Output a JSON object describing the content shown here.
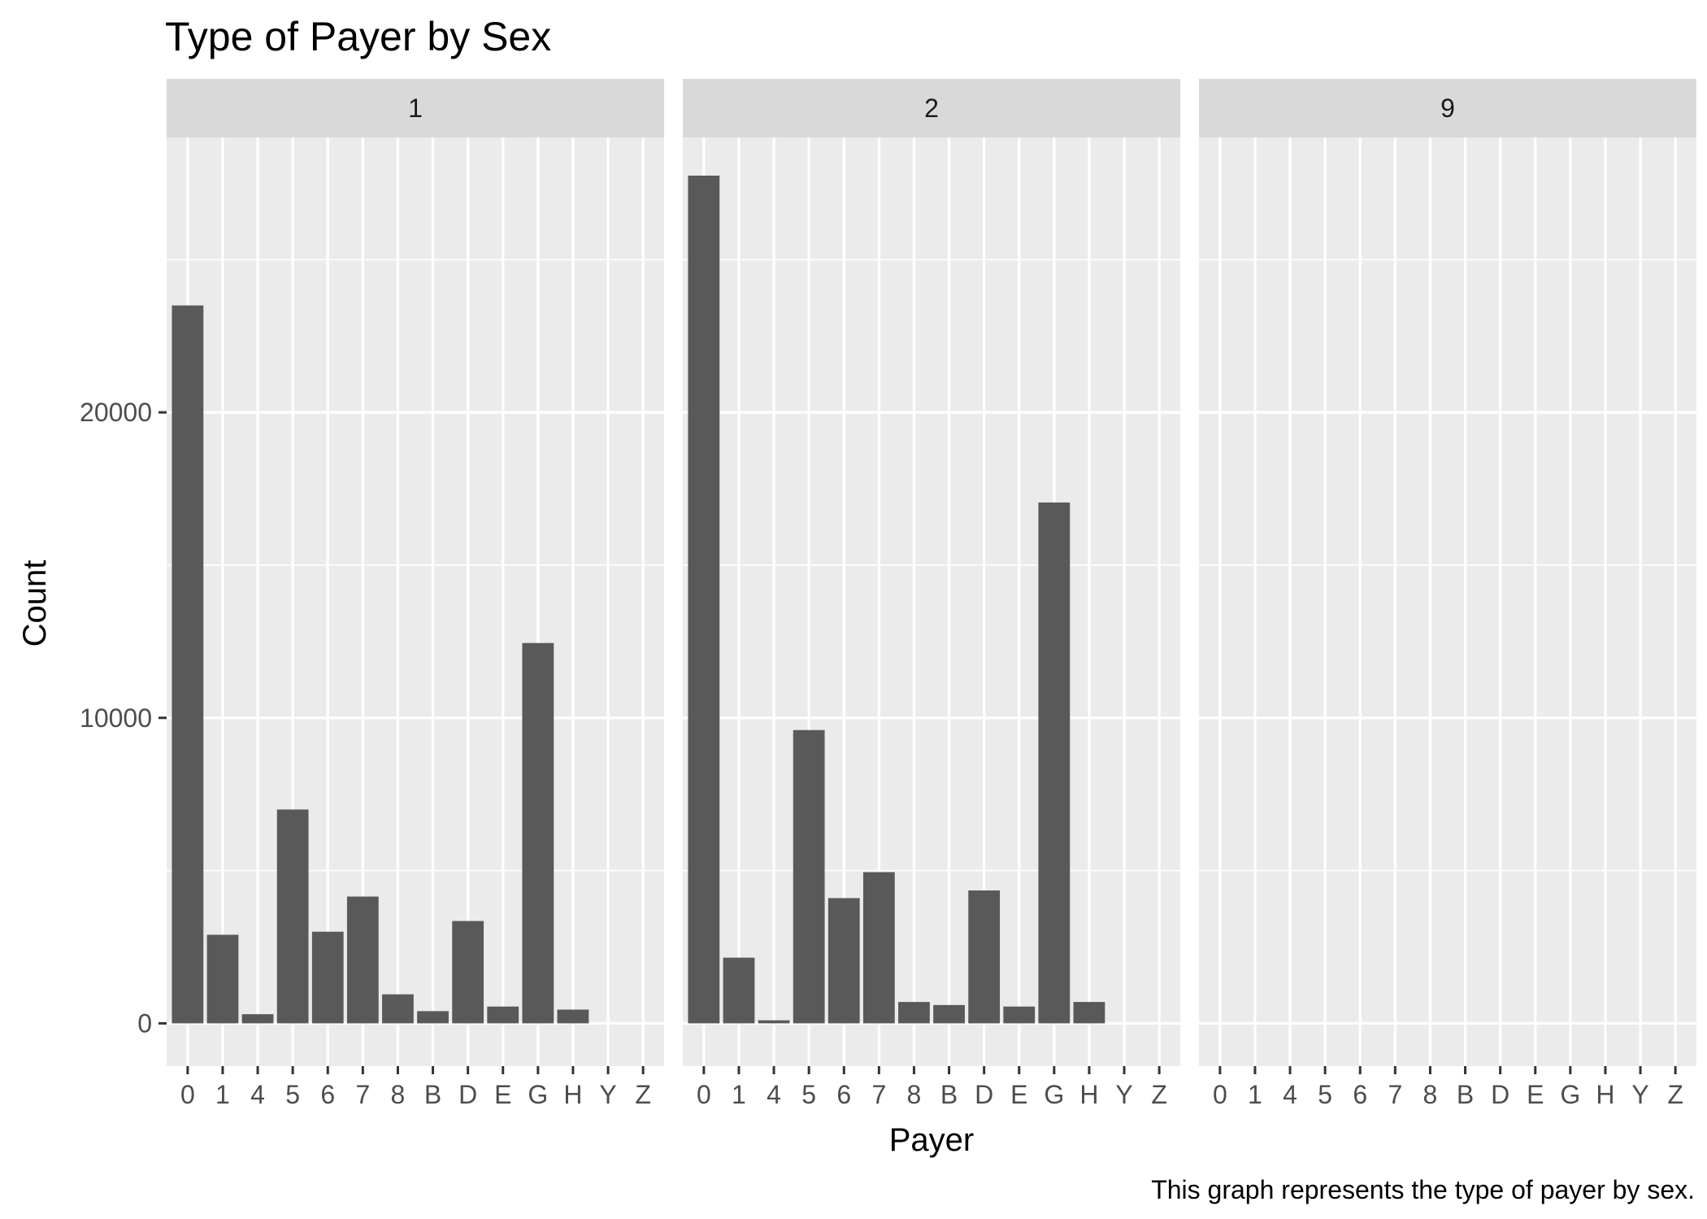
{
  "chart_data": {
    "type": "bar",
    "title": "Type of Payer by Sex",
    "xlabel": "Payer",
    "ylabel": "Count",
    "caption": "This graph represents the type of payer by sex.",
    "ylim": [
      -1400,
      29000
    ],
    "y_ticks": [
      "0",
      "10000",
      "20000"
    ],
    "categories": [
      "0",
      "1",
      "4",
      "5",
      "6",
      "7",
      "8",
      "B",
      "D",
      "E",
      "G",
      "H",
      "Y",
      "Z"
    ],
    "facets": [
      {
        "label": "1",
        "values": [
          23500,
          2900,
          300,
          7000,
          3000,
          4150,
          950,
          400,
          3350,
          550,
          12450,
          450,
          0,
          0
        ]
      },
      {
        "label": "2",
        "values": [
          27750,
          2150,
          100,
          9600,
          4100,
          4950,
          700,
          600,
          4350,
          550,
          17050,
          700,
          0,
          0
        ]
      },
      {
        "label": "9",
        "values": [
          0,
          0,
          0,
          0,
          0,
          0,
          0,
          0,
          0,
          0,
          0,
          0,
          0,
          0
        ]
      }
    ],
    "grid": true,
    "colors": {
      "bar": "#595959",
      "panel_background": "#ebebeb",
      "strip_background": "#d9d9d9",
      "gridline": "#ffffff"
    }
  }
}
